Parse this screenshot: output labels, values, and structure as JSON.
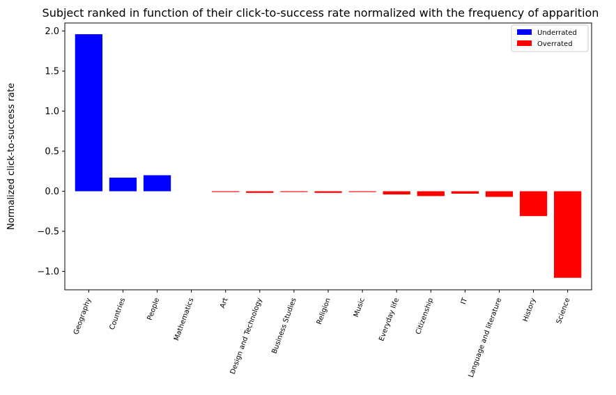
{
  "chart_data": {
    "type": "bar",
    "title": "Subject ranked in function of their click-to-success rate normalized with the frequency of apparition",
    "xlabel": "",
    "ylabel": "Normalized click-to-success rate",
    "ylim": [
      -1.23,
      2.1
    ],
    "yticks": [
      2.0,
      1.5,
      1.0,
      0.5,
      0.0,
      -0.5,
      -1.0
    ],
    "ytick_labels": [
      "2.0",
      "1.5",
      "1.0",
      "0.5",
      "0.0",
      "−0.5",
      "−1.0"
    ],
    "categories": [
      "Geography",
      "Countries",
      "People",
      "Mathematics",
      "Art",
      "Design and Technology",
      "Business Studies",
      "Religion",
      "Music",
      "Everyday life",
      "Citizenship",
      "IT",
      "Language and literature",
      "History",
      "Science"
    ],
    "values": [
      1.96,
      0.17,
      0.2,
      0.0,
      -0.01,
      -0.02,
      -0.01,
      -0.02,
      -0.01,
      -0.04,
      -0.06,
      -0.03,
      -0.07,
      -0.31,
      -1.08
    ],
    "groups": [
      "Underrated",
      "Underrated",
      "Underrated",
      "Underrated",
      "Overrated",
      "Overrated",
      "Overrated",
      "Overrated",
      "Overrated",
      "Overrated",
      "Overrated",
      "Overrated",
      "Overrated",
      "Overrated",
      "Overrated"
    ],
    "legend": {
      "position": "top-right",
      "entries": [
        {
          "label": "Underrated",
          "color": "#0000ff"
        },
        {
          "label": "Overrated",
          "color": "#ff0000"
        }
      ]
    },
    "colors": {
      "Underrated": "#0000ff",
      "Overrated": "#ff0000"
    },
    "grid": false
  }
}
